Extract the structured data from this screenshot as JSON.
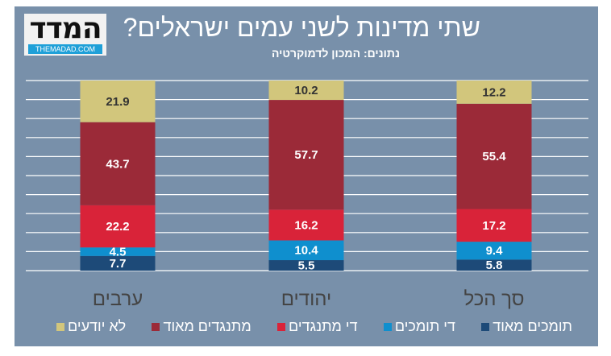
{
  "header": {
    "title": "שתי מדינות לשני עמים ישראלים?",
    "subtitle": "נתונים: המכון לדמוקרטיה"
  },
  "logo": {
    "hebrew": "המדד",
    "english": "THEMADAD.COM"
  },
  "chart_data": {
    "type": "bar",
    "stacked": true,
    "categories": [
      "ערבים",
      "יהודים",
      "סך הכל"
    ],
    "ylim": [
      0,
      100
    ],
    "grid": true,
    "legend_position": "bottom",
    "series": [
      {
        "name": "תומכים מאוד",
        "color": "#1d4a78",
        "values": [
          7.7,
          5.5,
          5.8
        ]
      },
      {
        "name": "די תומכים",
        "color": "#0f8fce",
        "values": [
          4.5,
          10.4,
          9.4
        ]
      },
      {
        "name": "די מתנגדים",
        "color": "#d92339",
        "values": [
          22.2,
          16.2,
          17.2
        ]
      },
      {
        "name": "מתנגדים מאוד",
        "color": "#9b2a38",
        "values": [
          43.7,
          57.7,
          55.4
        ]
      },
      {
        "name": "לא יודעים",
        "color": "#d2c67c",
        "values": [
          21.9,
          10.2,
          12.2
        ]
      }
    ]
  }
}
